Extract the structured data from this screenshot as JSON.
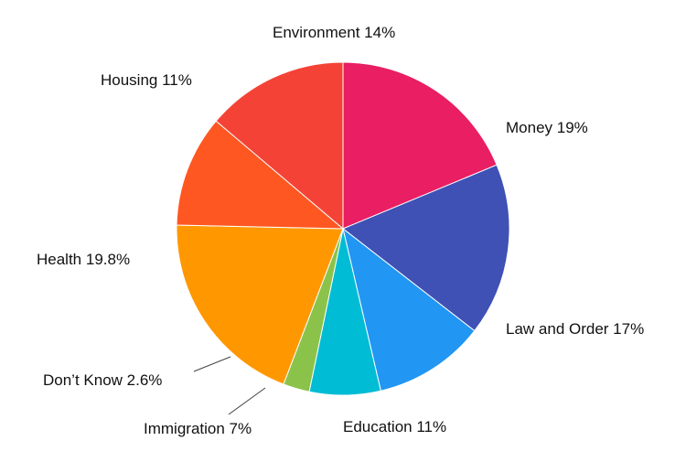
{
  "chart_data": {
    "type": "pie",
    "slices": [
      {
        "label": "Money",
        "value": 19,
        "value_label": "19%",
        "color": "#E91E63"
      },
      {
        "label": "Law and Order",
        "value": 17,
        "value_label": "17%",
        "color": "#3F51B5"
      },
      {
        "label": "Education",
        "value": 11,
        "value_label": "11%",
        "color": "#2196F3"
      },
      {
        "label": "Immigration",
        "value": 7,
        "value_label": "7%",
        "color": "#00BCD4"
      },
      {
        "label": "Don’t Know",
        "value": 2.6,
        "value_label": "2.6%",
        "color": "#8BC34A"
      },
      {
        "label": "Health",
        "value": 19.8,
        "value_label": "19.8%",
        "color": "#FF9800"
      },
      {
        "label": "Housing",
        "value": 11,
        "value_label": "11%",
        "color": "#FF5722"
      },
      {
        "label": "Environment",
        "value": 14,
        "value_label": "14%",
        "color": "#F44336"
      }
    ],
    "start_angle_deg": 90,
    "direction": "clockwise"
  }
}
